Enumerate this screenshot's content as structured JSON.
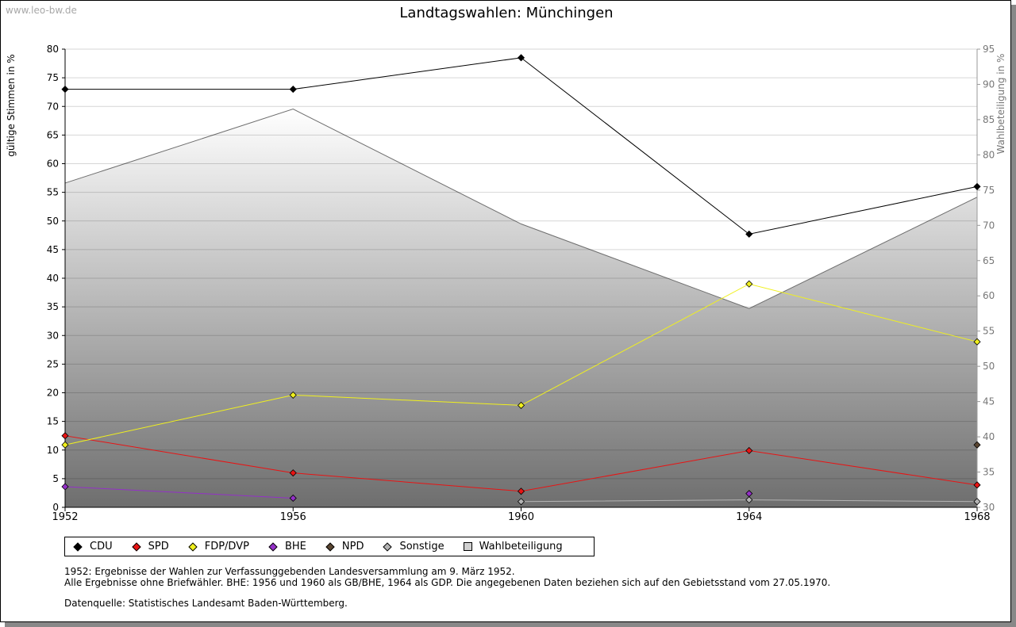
{
  "watermark": "www.leo-bw.de",
  "chart_data": {
    "type": "line",
    "title": "Landtagswahlen: Münchingen",
    "ylabel": "gültige Stimmen in %",
    "y2label": "Wahlbeteiligung in %",
    "x": [
      "1952",
      "1956",
      "1960",
      "1964",
      "1968"
    ],
    "ylim": [
      0,
      80
    ],
    "y2lim": [
      30,
      95
    ],
    "yticks": [
      0,
      5,
      10,
      15,
      20,
      25,
      30,
      35,
      40,
      45,
      50,
      55,
      60,
      65,
      70,
      75,
      80
    ],
    "y2ticks": [
      30,
      35,
      40,
      45,
      50,
      55,
      60,
      65,
      70,
      75,
      80,
      85,
      90,
      95
    ],
    "grid": true,
    "legend_position": "bottom-left",
    "series": [
      {
        "name": "CDU",
        "color": "#000000",
        "values": [
          73.0,
          73.0,
          78.5,
          47.7,
          56.0
        ]
      },
      {
        "name": "SPD",
        "color": "#e81414",
        "values": [
          12.5,
          6.0,
          2.8,
          9.9,
          3.9
        ]
      },
      {
        "name": "FDP/DVP",
        "color": "#f0f01e",
        "values": [
          10.9,
          19.6,
          17.8,
          39.0,
          28.9
        ]
      },
      {
        "name": "BHE",
        "color": "#9430c8",
        "values": [
          3.6,
          1.6,
          null,
          2.4,
          null
        ]
      },
      {
        "name": "NPD",
        "color": "#5a4632",
        "values": [
          null,
          null,
          null,
          null,
          10.9
        ]
      },
      {
        "name": "Sonstige",
        "color": "#b4b4b4",
        "values": [
          null,
          null,
          1.0,
          1.3,
          1.0
        ]
      }
    ],
    "turnout": {
      "name": "Wahlbeteiligung",
      "axis": "right",
      "values": [
        76.0,
        86.5,
        70.2,
        58.2,
        74.0
      ]
    }
  },
  "notes": {
    "line1": "1952: Ergebnisse der Wahlen zur Verfassunggebenden Landesversammlung am 9. März 1952.",
    "line2": "Alle Ergebnisse ohne Briefwähler. BHE: 1956 und 1960 als GB/BHE, 1964 als GDP. Die angegebenen Daten beziehen sich auf den Gebietsstand vom 27.05.1970.",
    "source": "Datenquelle: Statistisches Landesamt Baden-Württemberg."
  }
}
